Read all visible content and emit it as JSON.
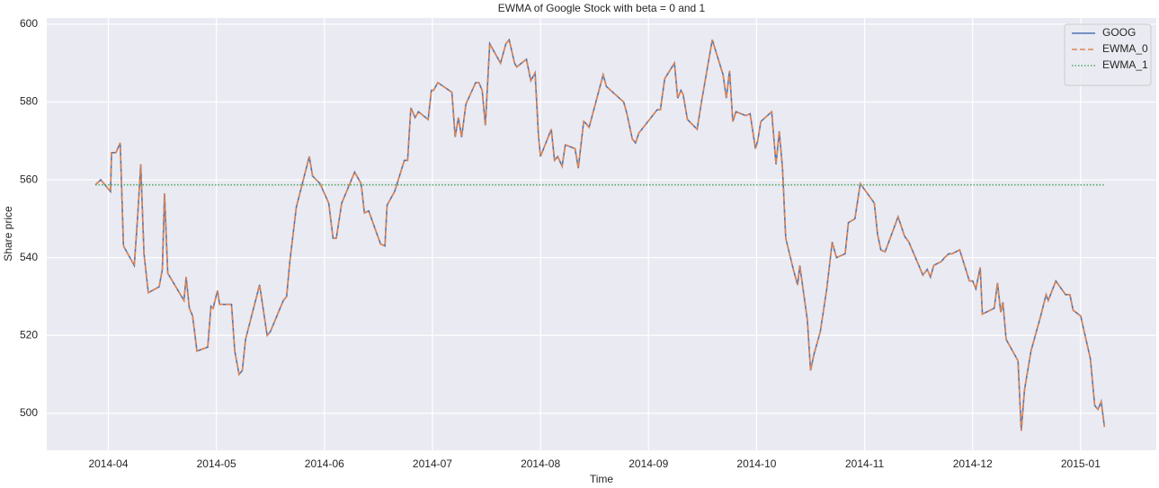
{
  "chart_data": {
    "type": "line",
    "title": "EWMA of Google Stock with beta = 0 and 1",
    "xlabel": "Time",
    "ylabel": "Share price",
    "x": [
      3.88,
      3.93,
      4.02,
      4.03,
      4.07,
      4.11,
      4.14,
      4.24,
      4.27,
      4.3,
      4.33,
      4.37,
      4.47,
      4.5,
      4.52,
      4.55,
      4.7,
      4.72,
      4.75,
      4.78,
      4.82,
      4.92,
      4.95,
      4.97,
      5.01,
      5.03,
      5.14,
      5.17,
      5.21,
      5.24,
      5.27,
      5.4,
      5.47,
      5.5,
      5.62,
      5.65,
      5.68,
      5.74,
      5.86,
      5.89,
      5.96,
      6.04,
      6.08,
      6.11,
      6.16,
      6.28,
      6.34,
      6.37,
      6.41,
      6.52,
      6.56,
      6.58,
      6.65,
      6.74,
      6.77,
      6.8,
      6.84,
      6.87,
      6.96,
      6.99,
      7.01,
      7.05,
      7.18,
      7.21,
      7.24,
      7.27,
      7.31,
      7.4,
      7.43,
      7.46,
      7.49,
      7.53,
      7.63,
      7.68,
      7.71,
      7.76,
      7.78,
      7.87,
      7.91,
      7.95,
      7.98,
      8.0,
      8.1,
      8.13,
      8.16,
      8.2,
      8.23,
      8.32,
      8.35,
      8.4,
      8.42,
      8.45,
      8.58,
      8.61,
      8.77,
      8.8,
      8.85,
      8.88,
      8.91,
      9.08,
      9.11,
      9.15,
      9.24,
      9.27,
      9.3,
      9.32,
      9.36,
      9.45,
      9.49,
      9.59,
      9.69,
      9.72,
      9.75,
      9.78,
      9.81,
      9.9,
      9.94,
      9.99,
      10.01,
      10.04,
      10.14,
      10.18,
      10.21,
      10.24,
      10.27,
      10.34,
      10.38,
      10.4,
      10.47,
      10.5,
      10.53,
      10.59,
      10.65,
      10.7,
      10.74,
      10.82,
      10.85,
      10.91,
      10.96,
      11.0,
      11.09,
      11.12,
      11.15,
      11.19,
      11.31,
      11.34,
      11.37,
      11.41,
      11.54,
      11.58,
      11.61,
      11.64,
      11.71,
      11.74,
      11.78,
      11.81,
      11.88,
      11.97,
      12.0,
      12.03,
      12.07,
      12.09,
      12.2,
      12.23,
      12.26,
      12.28,
      12.31,
      12.42,
      12.45,
      12.48,
      12.54,
      12.58,
      12.63,
      12.68,
      12.7,
      12.77,
      12.86,
      12.9,
      12.93,
      13.0,
      13.09,
      13.13,
      13.16,
      13.19,
      13.22
    ],
    "series": [
      {
        "name": "GOOG",
        "color": "#4c72b0",
        "linestyle": "solid",
        "values": [
          558.7,
          560,
          557,
          567,
          567,
          569.5,
          543,
          538,
          550,
          564,
          541,
          531,
          532.5,
          537,
          556.5,
          536,
          529,
          535,
          527,
          525,
          516,
          517,
          527.5,
          527,
          531.5,
          528,
          528,
          516,
          510,
          511,
          519,
          533,
          520,
          521,
          529,
          530,
          539,
          553,
          566,
          561,
          559,
          554,
          545,
          545,
          554,
          562,
          559,
          551.5,
          552,
          543.5,
          543,
          553.5,
          557,
          565,
          565,
          578.5,
          576,
          577.5,
          575.5,
          583,
          583,
          585,
          582.5,
          571,
          576,
          571,
          579.5,
          585,
          585,
          583,
          574,
          595,
          590,
          595,
          596,
          590,
          589,
          591,
          585.5,
          587.5,
          572,
          566,
          573,
          565,
          566,
          563.5,
          569,
          568,
          563,
          575,
          574.5,
          573.5,
          587,
          584,
          580,
          577,
          570.5,
          569.5,
          572,
          578,
          578,
          586,
          590,
          581,
          583,
          582,
          575.5,
          573,
          580,
          596,
          587,
          581,
          588,
          575,
          577.5,
          576.5,
          577,
          568,
          570,
          575,
          577.5,
          564,
          572.5,
          563,
          545,
          537,
          533,
          538,
          524,
          511,
          515,
          521,
          532,
          544,
          540,
          541,
          549,
          550,
          559,
          557.5,
          554,
          546,
          542,
          541.5,
          550.5,
          548,
          545.5,
          544,
          535.5,
          537,
          535,
          538,
          539,
          540,
          541,
          541,
          542,
          534,
          534,
          532,
          537.5,
          525.5,
          527,
          533.5,
          526,
          528.5,
          519,
          513.5,
          495.5,
          506,
          516,
          520,
          525,
          530.5,
          529,
          534,
          530.5,
          530.5,
          526.5,
          525,
          514,
          502,
          501,
          503,
          496.5
        ]
      },
      {
        "name": "EWMA_0",
        "color": "#dd8452",
        "linestyle": "dashed",
        "values": [
          558.7,
          560,
          557,
          567,
          567,
          569.5,
          543,
          538,
          550,
          564,
          541,
          531,
          532.5,
          537,
          556.5,
          536,
          529,
          535,
          527,
          525,
          516,
          517,
          527.5,
          527,
          531.5,
          528,
          528,
          516,
          510,
          511,
          519,
          533,
          520,
          521,
          529,
          530,
          539,
          553,
          566,
          561,
          559,
          554,
          545,
          545,
          554,
          562,
          559,
          551.5,
          552,
          543.5,
          543,
          553.5,
          557,
          565,
          565,
          578.5,
          576,
          577.5,
          575.5,
          583,
          583,
          585,
          582.5,
          571,
          576,
          571,
          579.5,
          585,
          585,
          583,
          574,
          595,
          590,
          595,
          596,
          590,
          589,
          591,
          585.5,
          587.5,
          572,
          566,
          573,
          565,
          566,
          563.5,
          569,
          568,
          563,
          575,
          574.5,
          573.5,
          587,
          584,
          580,
          577,
          570.5,
          569.5,
          572,
          578,
          578,
          586,
          590,
          581,
          583,
          582,
          575.5,
          573,
          580,
          596,
          587,
          581,
          588,
          575,
          577.5,
          576.5,
          577,
          568,
          570,
          575,
          577.5,
          564,
          572.5,
          563,
          545,
          537,
          533,
          538,
          524,
          511,
          515,
          521,
          532,
          544,
          540,
          541,
          549,
          550,
          559,
          557.5,
          554,
          546,
          542,
          541.5,
          550.5,
          548,
          545.5,
          544,
          535.5,
          537,
          535,
          538,
          539,
          540,
          541,
          541,
          542,
          534,
          534,
          532,
          537.5,
          525.5,
          527,
          533.5,
          526,
          528.5,
          519,
          513.5,
          495.5,
          506,
          516,
          520,
          525,
          530.5,
          529,
          534,
          530.5,
          530.5,
          526.5,
          525,
          514,
          502,
          501,
          503,
          496.5
        ]
      },
      {
        "name": "EWMA_1",
        "color": "#55a868",
        "linestyle": "dotted",
        "values": [
          558.7,
          558.7,
          558.7,
          558.7,
          558.7,
          558.7,
          558.7,
          558.7,
          558.7,
          558.7,
          558.7,
          558.7,
          558.7,
          558.7,
          558.7,
          558.7,
          558.7,
          558.7,
          558.7,
          558.7,
          558.7,
          558.7,
          558.7,
          558.7,
          558.7,
          558.7,
          558.7,
          558.7,
          558.7,
          558.7,
          558.7,
          558.7,
          558.7,
          558.7,
          558.7,
          558.7,
          558.7,
          558.7,
          558.7,
          558.7,
          558.7,
          558.7,
          558.7,
          558.7,
          558.7,
          558.7,
          558.7,
          558.7,
          558.7,
          558.7,
          558.7,
          558.7,
          558.7,
          558.7,
          558.7,
          558.7,
          558.7,
          558.7,
          558.7,
          558.7,
          558.7,
          558.7,
          558.7,
          558.7,
          558.7,
          558.7,
          558.7,
          558.7,
          558.7,
          558.7,
          558.7,
          558.7,
          558.7,
          558.7,
          558.7,
          558.7,
          558.7,
          558.7,
          558.7,
          558.7,
          558.7,
          558.7,
          558.7,
          558.7,
          558.7,
          558.7,
          558.7,
          558.7,
          558.7,
          558.7,
          558.7,
          558.7,
          558.7,
          558.7,
          558.7,
          558.7,
          558.7,
          558.7,
          558.7,
          558.7,
          558.7,
          558.7,
          558.7,
          558.7,
          558.7,
          558.7,
          558.7,
          558.7,
          558.7,
          558.7,
          558.7,
          558.7,
          558.7,
          558.7,
          558.7,
          558.7,
          558.7,
          558.7,
          558.7,
          558.7,
          558.7,
          558.7,
          558.7,
          558.7,
          558.7,
          558.7,
          558.7,
          558.7,
          558.7,
          558.7,
          558.7,
          558.7,
          558.7,
          558.7,
          558.7,
          558.7,
          558.7,
          558.7,
          558.7,
          558.7,
          558.7,
          558.7,
          558.7,
          558.7,
          558.7,
          558.7,
          558.7,
          558.7,
          558.7,
          558.7,
          558.7,
          558.7,
          558.7,
          558.7,
          558.7,
          558.7,
          558.7,
          558.7,
          558.7,
          558.7,
          558.7,
          558.7,
          558.7,
          558.7,
          558.7,
          558.7,
          558.7,
          558.7,
          558.7,
          558.7,
          558.7,
          558.7,
          558.7,
          558.7,
          558.7,
          558.7,
          558.7,
          558.7,
          558.7,
          558.7,
          558.7,
          558.7,
          558.7,
          558.7,
          558.7
        ]
      }
    ],
    "xlim": [
      3.43,
      13.7
    ],
    "xticks": [
      {
        "value": 4,
        "label": "2014-04"
      },
      {
        "value": 5,
        "label": "2014-05"
      },
      {
        "value": 6,
        "label": "2014-06"
      },
      {
        "value": 7,
        "label": "2014-07"
      },
      {
        "value": 8,
        "label": "2014-08"
      },
      {
        "value": 9,
        "label": "2014-09"
      },
      {
        "value": 10,
        "label": "2014-10"
      },
      {
        "value": 11,
        "label": "2014-11"
      },
      {
        "value": 12,
        "label": "2014-12"
      },
      {
        "value": 13,
        "label": "2015-01"
      }
    ],
    "ylim": [
      490.5,
      601.6
    ],
    "yticks": [
      500,
      520,
      540,
      560,
      580,
      600
    ],
    "grid": true,
    "legend": "upper right"
  }
}
